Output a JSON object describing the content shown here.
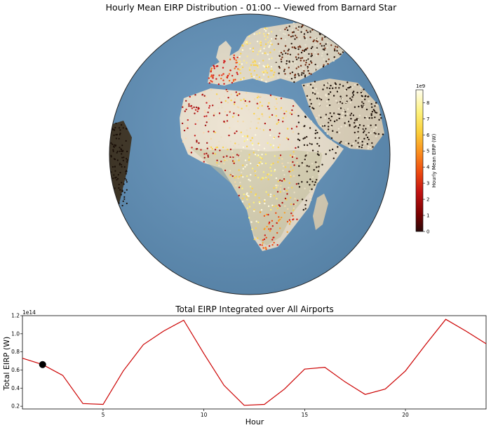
{
  "colors": {
    "ocean": "#5e8fb8",
    "land": "#ece2cf",
    "desert": "#e9dac0",
    "vegetation": "#a9b88f",
    "line": "#cc0000",
    "marker": "#000000"
  },
  "chart_data": [
    {
      "type": "map",
      "title": "Hourly Mean EIRP Distribution - 01:00 -- Viewed from Barnard Star",
      "projection": "orthographic globe",
      "colorbar": {
        "label": "Hourly Mean EIRP (W)",
        "offset_text": "1e9",
        "ticks": [
          "0",
          "1",
          "2",
          "3",
          "4",
          "5",
          "6",
          "7",
          "8"
        ],
        "range": [
          0,
          8.8
        ],
        "colormap": [
          "#2a0a0a",
          "#7a0000",
          "#c31212",
          "#ee4a10",
          "#fb8f1e",
          "#fbcf3a",
          "#fdf17a",
          "#fffef0"
        ],
        "placement": "right"
      }
    },
    {
      "type": "line",
      "title": "Total EIRP Integrated over All Airports",
      "xlabel": "Hour",
      "ylabel": "Total EIRP (W)",
      "y_offset_text": "1e14",
      "xlim": [
        1,
        24
      ],
      "ylim": [
        0.17,
        1.2
      ],
      "xticks": [
        5,
        10,
        15,
        20
      ],
      "yticks": [
        0.2,
        0.4,
        0.6,
        0.8,
        1.0,
        1.2
      ],
      "series": [
        {
          "x": [
            1,
            2,
            3,
            4,
            5,
            6,
            7,
            8,
            9,
            10,
            11,
            12,
            13,
            14,
            15,
            16,
            17,
            18,
            19,
            20,
            21,
            22,
            23,
            24
          ],
          "y": [
            0.73,
            0.66,
            0.54,
            0.23,
            0.22,
            0.59,
            0.88,
            1.03,
            1.15,
            0.78,
            0.43,
            0.21,
            0.22,
            0.39,
            0.61,
            0.63,
            0.47,
            0.33,
            0.39,
            0.59,
            0.88,
            1.16,
            1.03,
            0.89
          ]
        }
      ],
      "current_marker": {
        "x": 2,
        "y": 0.66
      }
    }
  ]
}
